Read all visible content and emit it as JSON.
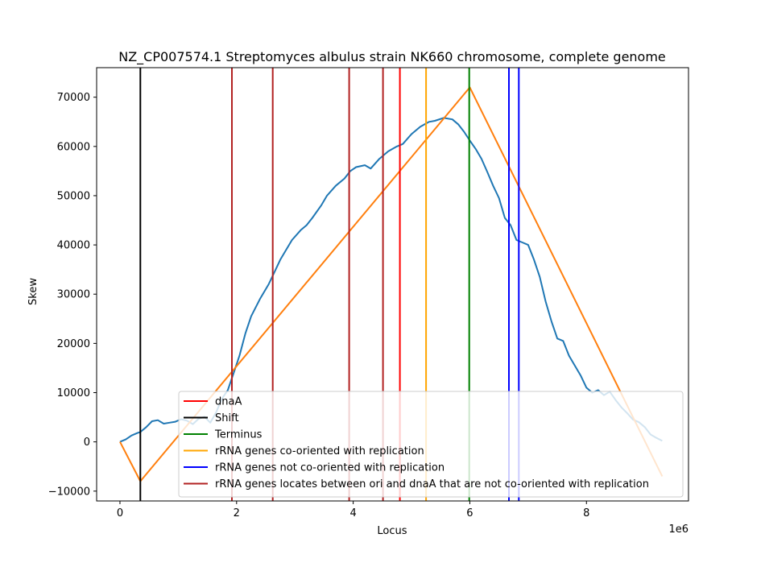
{
  "chart_data": {
    "type": "line",
    "title": "NZ_CP007574.1 Streptomyces albulus strain NK660 chromosome, complete genome",
    "xlabel": "Locus",
    "ylabel": "Skew",
    "x_offset_label": "1e6",
    "xlim": [
      -400000,
      9750000
    ],
    "ylim": [
      -12000,
      76000
    ],
    "x_ticks": [
      0,
      2000000,
      4000000,
      6000000,
      8000000
    ],
    "x_tick_labels": [
      "0",
      "2",
      "4",
      "6",
      "8"
    ],
    "y_ticks": [
      -10000,
      0,
      10000,
      20000,
      30000,
      40000,
      50000,
      60000,
      70000
    ],
    "y_tick_labels": [
      "−10000",
      "0",
      "10000",
      "20000",
      "30000",
      "40000",
      "50000",
      "60000",
      "70000"
    ],
    "grid": false,
    "legend_position": "lower-right",
    "colors": {
      "skew": "#1f77b4",
      "fit": "#ff7f0e",
      "dnaA": "#ff0000",
      "shift": "#000000",
      "terminus": "#008000",
      "rrna_co": "#ffa500",
      "rrna_not_co": "#0000ff",
      "rrna_between": "#b22222"
    },
    "skew_series": {
      "x": [
        0,
        100000,
        200000,
        300000,
        350000,
        450000,
        550000,
        650000,
        750000,
        850000,
        950000,
        1050000,
        1150000,
        1250000,
        1350000,
        1450000,
        1550000,
        1650000,
        1750000,
        1850000,
        1950000,
        2050000,
        2150000,
        2250000,
        2400000,
        2550000,
        2650000,
        2750000,
        2850000,
        2950000,
        3100000,
        3200000,
        3300000,
        3450000,
        3550000,
        3700000,
        3850000,
        3950000,
        4050000,
        4200000,
        4300000,
        4450000,
        4600000,
        4750000,
        4850000,
        5000000,
        5150000,
        5300000,
        5400000,
        5550000,
        5700000,
        5800000,
        5900000,
        6000000,
        6100000,
        6200000,
        6300000,
        6400000,
        6500000,
        6600000,
        6700000,
        6800000,
        6900000,
        7000000,
        7100000,
        7200000,
        7300000,
        7400000,
        7500000,
        7600000,
        7700000,
        7800000,
        7900000,
        8000000,
        8100000,
        8200000,
        8300000,
        8400000,
        8500000,
        8600000,
        8700000,
        8800000,
        8900000,
        9000000,
        9100000,
        9200000,
        9300000
      ],
      "y": [
        0,
        500,
        1300,
        1800,
        2000,
        3000,
        4200,
        4400,
        3700,
        3900,
        4100,
        4600,
        4300,
        3600,
        4700,
        5100,
        3900,
        6000,
        8800,
        10500,
        14000,
        17500,
        22000,
        25500,
        29000,
        32000,
        34500,
        37000,
        39000,
        41000,
        43000,
        44000,
        45500,
        48000,
        50000,
        52000,
        53500,
        55000,
        55800,
        56200,
        55500,
        57500,
        59000,
        60000,
        60500,
        62500,
        64000,
        65000,
        65200,
        65800,
        65500,
        64500,
        63000,
        61200,
        59500,
        57500,
        54800,
        52000,
        49500,
        45500,
        44000,
        41000,
        40500,
        40000,
        37000,
        33500,
        28500,
        24500,
        21000,
        20500,
        17500,
        15500,
        13500,
        11000,
        10000,
        10500,
        9500,
        10200,
        8500,
        7000,
        5800,
        4500,
        4000,
        3000,
        1500,
        800,
        200
      ]
    },
    "fit_series": {
      "x": [
        0,
        350000,
        6000000,
        9300000
      ],
      "y": [
        0,
        -8000,
        72000,
        -7000
      ]
    },
    "markers": [
      {
        "x": 350000,
        "color": "#000000",
        "series": "Shift"
      },
      {
        "x": 1920000,
        "color": "#b22222",
        "series": "rRNA genes locates between ori and dnaA that are not co-oriented with replication"
      },
      {
        "x": 2620000,
        "color": "#b22222",
        "series": "rRNA genes locates between ori and dnaA that are not co-oriented with replication"
      },
      {
        "x": 3930000,
        "color": "#b22222",
        "series": "rRNA genes locates between ori and dnaA that are not co-oriented with replication"
      },
      {
        "x": 4510000,
        "color": "#b22222",
        "series": "rRNA genes locates between ori and dnaA that are not co-oriented with replication"
      },
      {
        "x": 4800000,
        "color": "#ff0000",
        "series": "dnaA"
      },
      {
        "x": 5250000,
        "color": "#ffa500",
        "series": "rRNA genes co-oriented with replication"
      },
      {
        "x": 5990000,
        "color": "#008000",
        "series": "Terminus"
      },
      {
        "x": 6670000,
        "color": "#0000ff",
        "series": "rRNA genes not co-oriented with replication"
      },
      {
        "x": 6840000,
        "color": "#0000ff",
        "series": "rRNA genes not co-oriented with replication"
      }
    ],
    "legend": [
      {
        "label": "dnaA",
        "color": "#ff0000"
      },
      {
        "label": "Shift",
        "color": "#000000"
      },
      {
        "label": "Terminus",
        "color": "#008000"
      },
      {
        "label": "rRNA genes co-oriented with replication",
        "color": "#ffa500"
      },
      {
        "label": "rRNA genes not co-oriented with replication",
        "color": "#0000ff"
      },
      {
        "label": "rRNA genes locates between ori and dnaA that are not co-oriented with replication",
        "color": "#b22222"
      }
    ]
  }
}
